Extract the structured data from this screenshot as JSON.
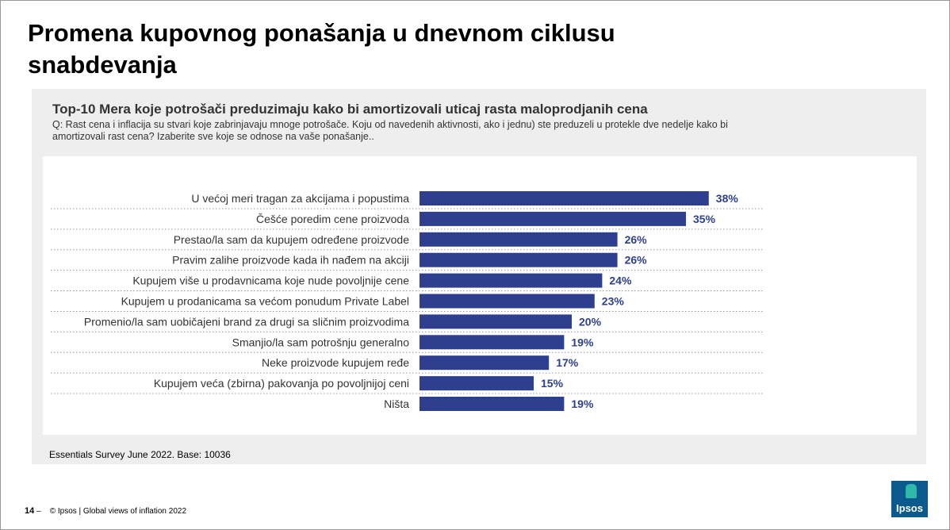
{
  "page": {
    "title": "Promena kupovnog ponašanja u dnevnom ciklusu snabdevanja",
    "source": "Essentials Survey June 2022. Base: 10036",
    "page_number": "14",
    "page_sep": "–",
    "copyright": "© Ipsos | Global views of inflation 2022",
    "logo_text": "Ipsos"
  },
  "colors": {
    "bar": "#2e3f8f",
    "label": "#2e3f8f",
    "panel": "#eeeeee",
    "logo": "#0b5a8e",
    "logo_accent": "#2fb8a8"
  },
  "chart_data": {
    "type": "bar",
    "orientation": "horizontal",
    "title": "Top-10 Mera koje potrošači preduzimaju kako bi amortizovali uticaj rasta maloprodjanih cena",
    "subtitle": "Q: Rast cena i inflacija su stvari koje zabrinjavaju mnoge potrošače. Koju od navedenih aktivnosti, ako i jednu) ste preduzeli u protekle dve nedelje kako bi amortizovali rast cena? Izaberite sve koje se odnose na vaše ponašanje..",
    "categories": [
      "U većoj meri tragan za akcijama i popustima",
      "Češće poredim cene proizvoda",
      "Prestao/la sam da kupujem određene proizvode",
      "Pravim zalihe proizvode kada ih nađem na akciji",
      "Kupujem više u prodavnicama koje nude povoljnije cene",
      "Kupujem u prodanicama sa većom ponudum Private Label",
      "Promenio/la sam uobičajeni brand za drugi sa sličnim proizvodima",
      "Smanjio/la sam potrošnju generalno",
      "Neke proizvode kupujem ređe",
      "Kupujem veća (zbirna) pakovanja po povoljnijoj ceni",
      "Ništa"
    ],
    "values": [
      38,
      35,
      26,
      26,
      24,
      23,
      20,
      19,
      17,
      15,
      19
    ],
    "data_labels": [
      "38%",
      "35%",
      "26%",
      "26%",
      "24%",
      "23%",
      "20%",
      "19%",
      "17%",
      "15%",
      "19%"
    ],
    "xlim": [
      0,
      100
    ],
    "grid": false
  }
}
